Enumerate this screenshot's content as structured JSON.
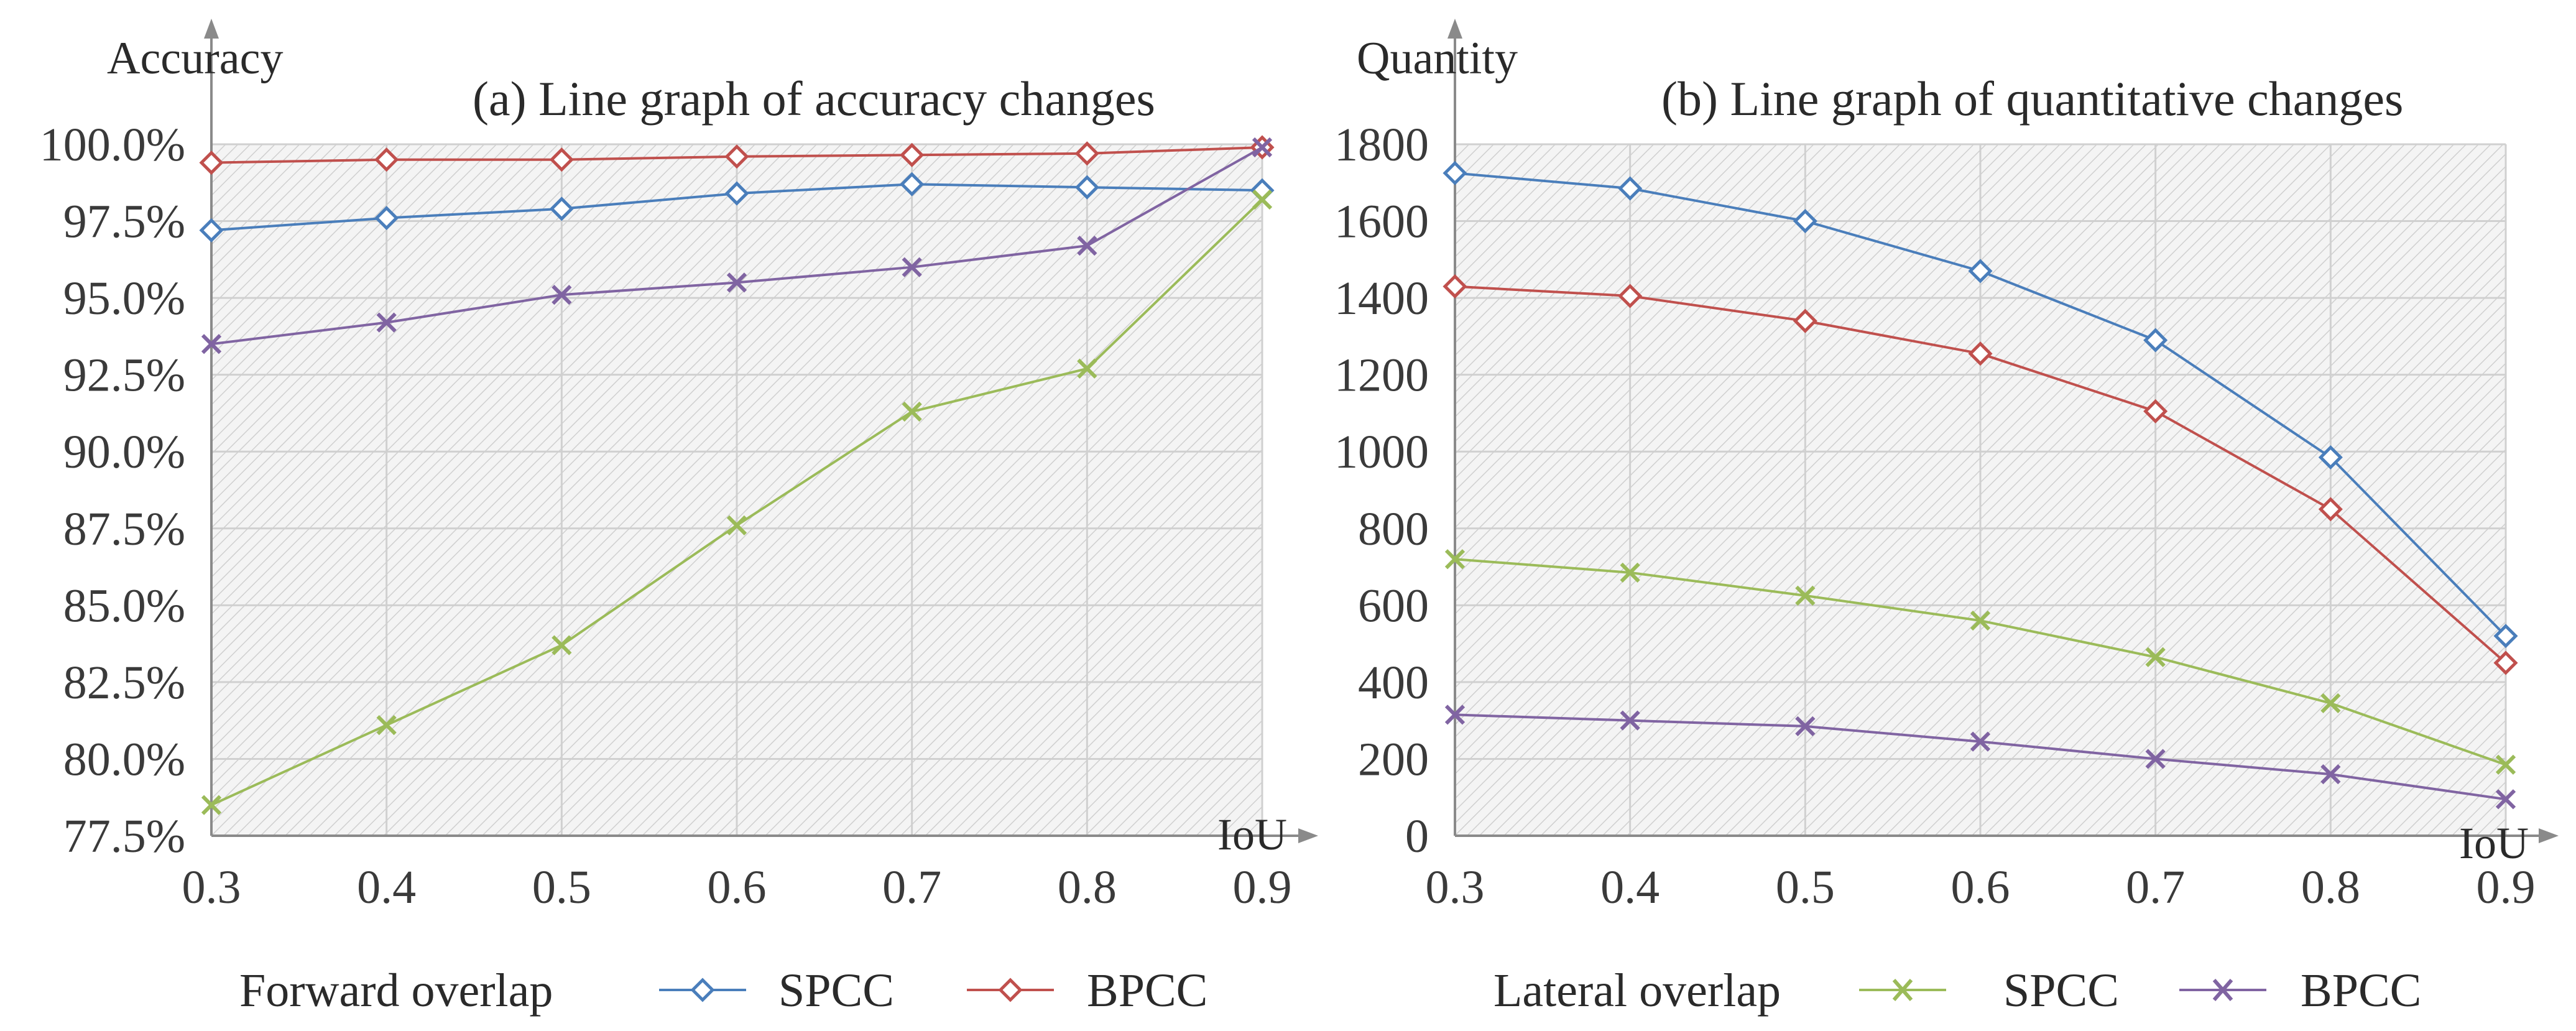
{
  "colors": {
    "spcc_forward": "#4a7ebb",
    "bpcc_forward": "#c0504d",
    "spcc_lateral": "#9bbb59",
    "bpcc_lateral": "#8064a2",
    "grid": "#d0d0d0",
    "axis": "#8a8a8a",
    "hatch": "#c8c8c8"
  },
  "legend": {
    "forward_label": "Forward overlap",
    "lateral_label": "Lateral overlap",
    "spcc": "SPCC",
    "bpcc": "BPCC"
  },
  "chart_data": [
    {
      "type": "line",
      "title": "(a) Line graph of accuracy changes",
      "xlabel": "IoU",
      "ylabel": "Accuracy",
      "x": [
        0.3,
        0.4,
        0.5,
        0.6,
        0.7,
        0.8,
        0.9
      ],
      "x_tick_labels": [
        "0.3",
        "0.4",
        "0.5",
        "0.6",
        "0.7",
        "0.8",
        "0.9"
      ],
      "y_tick_labels": [
        "100.0%",
        "97.5%",
        "95.0%",
        "92.5%",
        "90.0%",
        "87.5%",
        "85.0%",
        "82.5%",
        "80.0%",
        "77.5%"
      ],
      "ylim": [
        77.5,
        100.0
      ],
      "grid": true,
      "series": [
        {
          "name": "SPCC",
          "group": "Forward overlap",
          "marker": "diamond",
          "values": [
            97.2,
            97.6,
            97.9,
            98.4,
            98.7,
            98.6,
            98.5
          ]
        },
        {
          "name": "BPCC",
          "group": "Forward overlap",
          "marker": "diamond",
          "values": [
            99.4,
            99.5,
            99.5,
            99.6,
            99.65,
            99.7,
            99.9
          ]
        },
        {
          "name": "SPCC",
          "group": "Lateral overlap",
          "marker": "cross",
          "values": [
            78.5,
            81.1,
            83.7,
            87.6,
            91.3,
            92.7,
            98.2
          ]
        },
        {
          "name": "BPCC",
          "group": "Lateral overlap",
          "marker": "cross",
          "values": [
            93.5,
            94.2,
            95.1,
            95.5,
            96.0,
            96.7,
            99.9
          ]
        }
      ]
    },
    {
      "type": "line",
      "title": "(b) Line graph of quantitative changes",
      "xlabel": "IoU",
      "ylabel": "Quantity",
      "x": [
        0.3,
        0.4,
        0.5,
        0.6,
        0.7,
        0.8,
        0.9
      ],
      "x_tick_labels": [
        "0.3",
        "0.4",
        "0.5",
        "0.6",
        "0.7",
        "0.8",
        "0.9"
      ],
      "y_tick_labels": [
        "1800",
        "1600",
        "1400",
        "1200",
        "1000",
        "800",
        "600",
        "400",
        "200",
        "0"
      ],
      "ylim": [
        0,
        1800
      ],
      "grid": true,
      "series": [
        {
          "name": "SPCC",
          "group": "Forward overlap",
          "marker": "diamond",
          "values": [
            1725,
            1685,
            1600,
            1470,
            1290,
            985,
            520
          ]
        },
        {
          "name": "BPCC",
          "group": "Forward overlap",
          "marker": "diamond",
          "values": [
            1430,
            1405,
            1340,
            1255,
            1105,
            850,
            450
          ]
        },
        {
          "name": "SPCC",
          "group": "Lateral overlap",
          "marker": "cross",
          "values": [
            720,
            685,
            625,
            560,
            465,
            345,
            185
          ]
        },
        {
          "name": "BPCC",
          "group": "Lateral overlap",
          "marker": "cross",
          "values": [
            315,
            300,
            285,
            245,
            200,
            160,
            95
          ]
        }
      ]
    }
  ]
}
